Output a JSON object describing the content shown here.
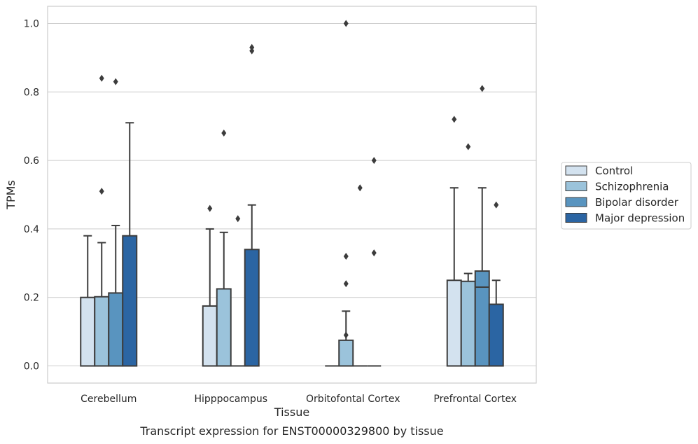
{
  "caption": "Transcript expression for ENST00000329800 by tissue",
  "chart_data": {
    "type": "box",
    "xlabel": "Tissue",
    "ylabel": "TPMs",
    "ylim": [
      -0.05,
      1.05
    ],
    "yticks": [
      0.0,
      0.2,
      0.4,
      0.6,
      0.8,
      1.0
    ],
    "ytick_labels": [
      "0.0",
      "0.2",
      "0.4",
      "0.6",
      "0.8",
      "1.0"
    ],
    "grid": true,
    "legend_position": "right",
    "categories": [
      "Cerebellum",
      "Hipppocampus",
      "Orbitofontal Cortex",
      "Prefrontal Cortex"
    ],
    "series": [
      {
        "name": "Control",
        "color": "#d3e2ef",
        "boxes": [
          {
            "whislo": 0.0,
            "q1": 0.0,
            "med": 0.0,
            "q3": 0.2,
            "whishi": 0.38,
            "fliers": []
          },
          {
            "whislo": 0.0,
            "q1": 0.0,
            "med": 0.0,
            "q3": 0.175,
            "whishi": 0.4,
            "fliers": [
              0.46
            ]
          },
          {
            "whislo": 0.0,
            "q1": 0.0,
            "med": 0.0,
            "q3": 0.0,
            "whishi": 0.0,
            "fliers": []
          },
          {
            "whislo": 0.0,
            "q1": 0.0,
            "med": 0.0,
            "q3": 0.25,
            "whishi": 0.52,
            "fliers": [
              0.72
            ]
          }
        ]
      },
      {
        "name": "Schizophrenia",
        "color": "#9bc3db",
        "boxes": [
          {
            "whislo": 0.0,
            "q1": 0.0,
            "med": 0.0,
            "q3": 0.202,
            "whishi": 0.36,
            "fliers": [
              0.51,
              0.84
            ]
          },
          {
            "whislo": 0.0,
            "q1": 0.0,
            "med": 0.0,
            "q3": 0.225,
            "whishi": 0.39,
            "fliers": [
              0.68
            ]
          },
          {
            "whislo": 0.0,
            "q1": 0.0,
            "med": 0.0,
            "q3": 0.075,
            "whishi": 0.16,
            "fliers": [
              0.09,
              0.24,
              0.32,
              1.0
            ]
          },
          {
            "whislo": 0.0,
            "q1": 0.0,
            "med": 0.0,
            "q3": 0.247,
            "whishi": 0.27,
            "fliers": [
              0.64
            ]
          }
        ]
      },
      {
        "name": "Bipolar disorder",
        "color": "#5994bf",
        "boxes": [
          {
            "whislo": 0.0,
            "q1": 0.0,
            "med": 0.0,
            "q3": 0.213,
            "whishi": 0.41,
            "fliers": [
              0.83
            ]
          },
          {
            "whislo": 0.0,
            "q1": 0.0,
            "med": 0.0,
            "q3": 0.0,
            "whishi": 0.0,
            "fliers": [
              0.43
            ]
          },
          {
            "whislo": 0.0,
            "q1": 0.0,
            "med": 0.0,
            "q3": 0.0,
            "whishi": 0.0,
            "fliers": [
              0.52
            ]
          },
          {
            "whislo": 0.0,
            "q1": 0.0,
            "med": 0.23,
            "q3": 0.277,
            "whishi": 0.52,
            "fliers": [
              0.81
            ]
          }
        ]
      },
      {
        "name": "Major depression",
        "color": "#2b65a3",
        "boxes": [
          {
            "whislo": 0.0,
            "q1": 0.0,
            "med": 0.0,
            "q3": 0.38,
            "whishi": 0.71,
            "fliers": []
          },
          {
            "whislo": 0.0,
            "q1": 0.0,
            "med": 0.0,
            "q3": 0.34,
            "whishi": 0.47,
            "fliers": [
              0.92,
              0.93
            ]
          },
          {
            "whislo": 0.0,
            "q1": 0.0,
            "med": 0.0,
            "q3": 0.0,
            "whishi": 0.0,
            "fliers": [
              0.33,
              0.6
            ]
          },
          {
            "whislo": 0.0,
            "q1": 0.0,
            "med": 0.0,
            "q3": 0.18,
            "whishi": 0.25,
            "fliers": [
              0.47
            ]
          }
        ]
      }
    ]
  }
}
